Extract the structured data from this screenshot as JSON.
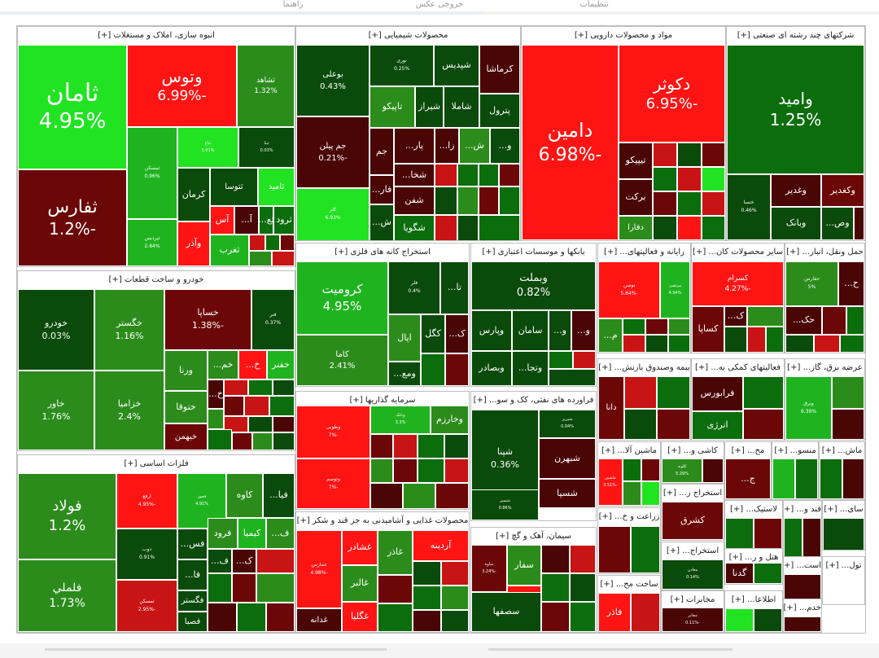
{
  "toolbar": {
    "tabs": [
      "راهنما",
      "خروجی عکس",
      "تنظیمات"
    ]
  },
  "sectors": {
    "s1": "انبوه سازی، املاک و مستغلات [+]",
    "s2": "محصولات شیمیایی [+]",
    "s3": "مواد و محصولات دارویی [+]",
    "s4": "شرکتهای چند رشته ای صنعتی [+]",
    "s5": "خودرو و ساخت قطعات [+]",
    "s6": "استخراج کانه های فلزی [+]",
    "s7": "بانکها و موسسات اعتباری [+]",
    "s8": "رایانه و فعالیتهای... [+]",
    "s9": "سایر محصولات کان... [+]",
    "s10": "حمل ونقل، انبار... [+]",
    "s11": "فلزات اساسی [+]",
    "s12": "سرمایه گذاریها [+]",
    "s13": "فراورده های نفتی، کک و سو... [+]",
    "s14": "بیمه وصندوق بازنش... [+]",
    "s15": "فعالیتهای کمکی به... [+]",
    "s16": "عرضه برق، گاز... [+]",
    "s17": "محصولات غذایی و آشامیدنی به جز قند و شکر [+]",
    "s18": "سیمان، آهک و گچ [+]",
    "s19": "ماشین آلا... [+]",
    "s20": "کاشی و... [+]",
    "s21": "مح... [+]",
    "s22": "منسو... [+]",
    "s23": "ماش... [+]",
    "s24": "استخراج ز... [+]",
    "s25": "زراعت و خ... [+]",
    "s26": "ساخت مح... [+]",
    "s27": "استخراج... [+]",
    "s28": "مخابرات [+]",
    "s29": "لاستیک... [+]",
    "s30": "قند و... [+]",
    "s31": "سای... [+]",
    "s32": "هتل و ر... [+]",
    "s33": "است... [+]",
    "s34": "تول... [+]",
    "s35": "اطلاعا... [+]",
    "s36": "خدم... [+]"
  },
  "tiles": {
    "t1": {
      "n": "ثامان",
      "p": "4.95%"
    },
    "t2": {
      "n": "وتوس",
      "p": "-6.99%"
    },
    "t3": {
      "n": "ثشاهد",
      "p": "1.32%"
    },
    "t4": {
      "n": "ثفارس",
      "p": "-1.2%"
    },
    "t5": {
      "n": "ثمسکن",
      "p": "0.96%"
    },
    "t6": {
      "n": "ثباغ",
      "p": "5.01%"
    },
    "t7": {
      "n": "ثبنا",
      "p": "0.03%"
    },
    "t8": {
      "n": "کرمان",
      "p": ""
    },
    "t9": {
      "n": "ثتوسا",
      "p": ""
    },
    "t10": {
      "n": "ثامید",
      "p": ""
    },
    "t11": {
      "n": "ثپردیس",
      "p": "2.84%"
    },
    "t12": {
      "n": "آس",
      "p": ""
    },
    "t13": {
      "n": "آ...",
      "p": ""
    },
    "t14": {
      "n": "ثع...",
      "p": ""
    },
    "t15": {
      "n": "ثرود",
      "p": ""
    },
    "t16": {
      "n": "وآذر",
      "p": ""
    },
    "t17": {
      "n": "ثغرب",
      "p": ""
    },
    "t18": {
      "n": "بوعلی",
      "p": "0.43%"
    },
    "t19": {
      "n": "نوری",
      "p": "0.25%"
    },
    "t20": {
      "n": "شپدیس",
      "p": ""
    },
    "t21": {
      "n": "کرماشا",
      "p": ""
    },
    "t22": {
      "n": "تاپیکو",
      "p": ""
    },
    "t23": {
      "n": "شیراز",
      "p": ""
    },
    "t24": {
      "n": "شاملا",
      "p": ""
    },
    "t25": {
      "n": "پترول",
      "p": ""
    },
    "t26": {
      "n": "جم پیلن",
      "p": "-0.21%"
    },
    "t27": {
      "n": "جم",
      "p": ""
    },
    "t28": {
      "n": "پار...",
      "p": ""
    },
    "t29": {
      "n": "زا...",
      "p": ""
    },
    "t30": {
      "n": "ش...",
      "p": ""
    },
    "t31": {
      "n": "و...",
      "p": ""
    },
    "t32": {
      "n": "شخا...",
      "p": ""
    },
    "t33": {
      "n": "فار...",
      "p": ""
    },
    "t34": {
      "n": "شفن",
      "p": ""
    },
    "t35": {
      "n": "شگویا",
      "p": ""
    },
    "t36": {
      "n": "کلر",
      "p": "6.93%"
    },
    "t37": {
      "n": "ش...",
      "p": ""
    },
    "t38": {
      "n": "دامین",
      "p": "-6.98%"
    },
    "t39": {
      "n": "دکوثر",
      "p": "-6.95%"
    },
    "t40": {
      "n": "تیپیکو",
      "p": ""
    },
    "t41": {
      "n": "برکت",
      "p": ""
    },
    "t42": {
      "n": "دفارا",
      "p": ""
    },
    "t43": {
      "n": "وامید",
      "p": "1.25%"
    },
    "t44": {
      "n": "وکغدیر",
      "p": ""
    },
    "t45": {
      "n": "وغدیر",
      "p": ""
    },
    "t46": {
      "n": "ختسا",
      "p": "0.46%"
    },
    "t47": {
      "n": "وبانک",
      "p": ""
    },
    "t48": {
      "n": "وص...",
      "p": ""
    },
    "t49": {
      "n": "خودرو",
      "p": "0.03%"
    },
    "t50": {
      "n": "خگستر",
      "p": "1.16%"
    },
    "t51": {
      "n": "خساپا",
      "p": "-1.38%"
    },
    "t52": {
      "n": "فنر",
      "p": "0.37%"
    },
    "t53": {
      "n": "خاور",
      "p": "1.76%"
    },
    "t54": {
      "n": "خزامیا",
      "p": "2.4%"
    },
    "t55": {
      "n": "ورنا",
      "p": ""
    },
    "t56": {
      "n": "خم...",
      "p": ""
    },
    "t57": {
      "n": "خ...",
      "p": ""
    },
    "t58": {
      "n": "خفنر",
      "p": ""
    },
    "t59": {
      "n": "ختوقا",
      "p": ""
    },
    "t60": {
      "n": "خ...",
      "p": ""
    },
    "t61": {
      "n": "خبهمن",
      "p": ""
    },
    "t62": {
      "n": "کرومیت",
      "p": "4.95%"
    },
    "t63": {
      "n": "فلر",
      "p": "0.4%"
    },
    "t64": {
      "n": "تا...",
      "p": ""
    },
    "t65": {
      "n": "کاما",
      "p": "2.41%"
    },
    "t66": {
      "n": "اپال",
      "p": ""
    },
    "t67": {
      "n": "کگل",
      "p": ""
    },
    "t68": {
      "n": "ک...",
      "p": ""
    },
    "t69": {
      "n": "ومع...",
      "p": ""
    },
    "t70": {
      "n": "وبملت",
      "p": "0.82%"
    },
    "t71": {
      "n": "وپارس",
      "p": ""
    },
    "t72": {
      "n": "سامان",
      "p": ""
    },
    "t73": {
      "n": "و...",
      "p": ""
    },
    "t74": {
      "n": "و...",
      "p": ""
    },
    "t75": {
      "n": "وبصادر",
      "p": ""
    },
    "t76": {
      "n": "وتجا...",
      "p": ""
    },
    "t77": {
      "n": "مرتضی",
      "p": "4.94%"
    },
    "t78": {
      "n": "توسن",
      "p": "-5.84%"
    },
    "t79": {
      "n": "م...",
      "p": ""
    },
    "t80": {
      "n": "کسرام",
      "p": "-4.27%"
    },
    "t81": {
      "n": "کساپا",
      "p": ""
    },
    "t82": {
      "n": "ک...",
      "p": ""
    },
    "t83": {
      "n": "حفارس",
      "p": "5%"
    },
    "t84": {
      "n": "ح...",
      "p": ""
    },
    "t85": {
      "n": "حک...",
      "p": ""
    },
    "t86": {
      "n": "فولاد",
      "p": "1.2%"
    },
    "t87": {
      "n": "ارفع",
      "p": "-4.95%"
    },
    "t88": {
      "n": "فخوز",
      "p": "4.91%"
    },
    "t89": {
      "n": "کاوه",
      "p": ""
    },
    "t90": {
      "n": "فیا...",
      "p": ""
    },
    "t91": {
      "n": "فلملي",
      "p": "1.73%"
    },
    "t92": {
      "n": "ذوب",
      "p": "0.91%"
    },
    "t93": {
      "n": "فس...",
      "p": ""
    },
    "t94": {
      "n": "فرود",
      "p": ""
    },
    "t95": {
      "n": "کیمیا",
      "p": ""
    },
    "t96": {
      "n": "ف...",
      "p": ""
    },
    "t97": {
      "n": "فا...",
      "p": ""
    },
    "t98": {
      "n": "ف...",
      "p": ""
    },
    "t99": {
      "n": "ک...",
      "p": ""
    },
    "t100": {
      "n": "ثمسکن",
      "p": "-2.95%"
    },
    "t101": {
      "n": "فگستر",
      "p": ""
    },
    "t102": {
      "n": "فصبا",
      "p": ""
    },
    "t103": {
      "n": "وطوبی",
      "p": "-7%"
    },
    "t104": {
      "n": "وبانک",
      "p": "3.3%"
    },
    "t105": {
      "n": "وخارزم",
      "p": ""
    },
    "t106": {
      "n": "وتوسم",
      "p": "-7%"
    },
    "t107": {
      "n": "شپنا",
      "p": "0.36%"
    },
    "t108": {
      "n": "شبریز",
      "p": "0.04%"
    },
    "t109": {
      "n": "شبهرن",
      "p": ""
    },
    "t110": {
      "n": "شسپا",
      "p": ""
    },
    "t111": {
      "n": "شیمیر",
      "p": "0.86%"
    },
    "t112": {
      "n": "دانا",
      "p": ""
    },
    "t113": {
      "n": "فرابورس",
      "p": ""
    },
    "t114": {
      "n": "انرژی",
      "p": ""
    },
    "t115": {
      "n": "وبرق",
      "p": "6.39%"
    },
    "t116": {
      "n": "غمارس",
      "p": "-4.98%"
    },
    "t117": {
      "n": "غشادر",
      "p": ""
    },
    "t118": {
      "n": "آردینه",
      "p": ""
    },
    "t119": {
      "n": "غاذر",
      "p": ""
    },
    "t120": {
      "n": "غالبر",
      "p": ""
    },
    "t121": {
      "n": "غدانه",
      "p": ""
    },
    "t122": {
      "n": "غگلپا",
      "p": ""
    },
    "t123": {
      "n": "سفار",
      "p": ""
    },
    "t124": {
      "n": "ساوه",
      "p": "-3.24%"
    },
    "t125": {
      "n": "س...",
      "p": ""
    },
    "t126": {
      "n": "سصفها",
      "p": ""
    },
    "t127": {
      "n": "ماشین",
      "p": "-3.51%"
    },
    "t128": {
      "n": "کلوند",
      "p": "5.29%"
    },
    "t129": {
      "n": "ج...",
      "p": ""
    },
    "t130": {
      "n": "کشرق",
      "p": ""
    },
    "t131": {
      "n": "فاذر",
      "p": ""
    },
    "t132": {
      "n": "معادن",
      "p": "0.14%"
    },
    "t133": {
      "n": "مخابر",
      "p": "-0.11%"
    },
    "t134": {
      "n": "گدنا",
      "p": ""
    }
  }
}
